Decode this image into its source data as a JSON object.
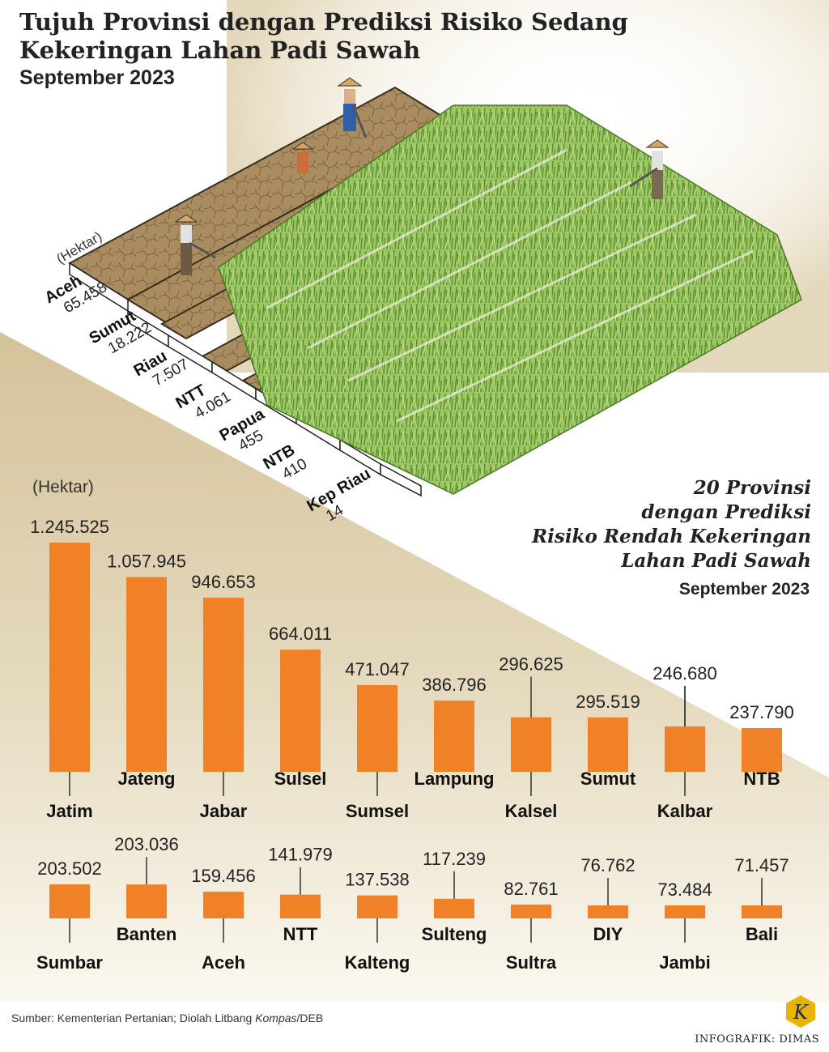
{
  "title_line1": "Tujuh Provinsi dengan Prediksi Risiko Sedang",
  "title_line2": "Kekeringan Lahan Padi Sawah",
  "subtitle": "September 2023",
  "medium_unit": "(Hektar)",
  "right_title": [
    "20 Provinsi",
    "dengan Prediksi",
    "Risiko Rendah Kekeringan",
    "Lahan Padi Sawah"
  ],
  "right_date": "September 2023",
  "bars_unit": "(Hektar)",
  "source_prefix": "Sumber: Kementerian Pertanian; Diolah Litbang ",
  "source_italic": "Kompas",
  "source_suffix": "/DEB",
  "credit": "INFOGRAFIK: DIMAS",
  "logo_letter": "K",
  "colors": {
    "bar": "#f08127",
    "soil": "#a98d61",
    "field": "#8fbf54",
    "band": "#dac9a1"
  },
  "chart_data": [
    {
      "type": "bar",
      "title": "Tujuh Provinsi dengan Prediksi Risiko Sedang Kekeringan Lahan Padi Sawah",
      "ylabel": "(Hektar)",
      "categories": [
        "Aceh",
        "Sumut",
        "Riau",
        "NTT",
        "Papua",
        "NTB",
        "Kep Riau"
      ],
      "values": [
        65458,
        18222,
        7507,
        4061,
        455,
        410,
        14
      ],
      "value_labels": [
        "65.458",
        "18.222",
        "7.507",
        "4.061",
        "455",
        "410",
        "14"
      ]
    },
    {
      "type": "bar",
      "title": "20 Provinsi dengan Prediksi Risiko Rendah Kekeringan Lahan Padi Sawah",
      "ylabel": "(Hektar)",
      "ylim": [
        0,
        1245525
      ],
      "categories": [
        "Jatim",
        "Jateng",
        "Jabar",
        "Sulsel",
        "Sumsel",
        "Lampung",
        "Kalsel",
        "Sumut",
        "Kalbar",
        "NTB",
        "Sumbar",
        "Banten",
        "Aceh",
        "NTT",
        "Kalteng",
        "Sulteng",
        "Sultra",
        "DIY",
        "Jambi",
        "Bali"
      ],
      "values": [
        1245525,
        1057945,
        946653,
        664011,
        471047,
        386796,
        296625,
        295519,
        246680,
        237790,
        203502,
        203036,
        159456,
        141979,
        137538,
        117239,
        82761,
        76762,
        73484,
        71457
      ],
      "value_labels": [
        "1.245.525",
        "1.057.945",
        "946.653",
        "664.011",
        "471.047",
        "386.796",
        "296.625",
        "295.519",
        "246.680",
        "237.790",
        "203.502",
        "203.036",
        "159.456",
        "141.979",
        "137.538",
        "117.239",
        "82.761",
        "76.762",
        "73.484",
        "71.457"
      ]
    }
  ]
}
